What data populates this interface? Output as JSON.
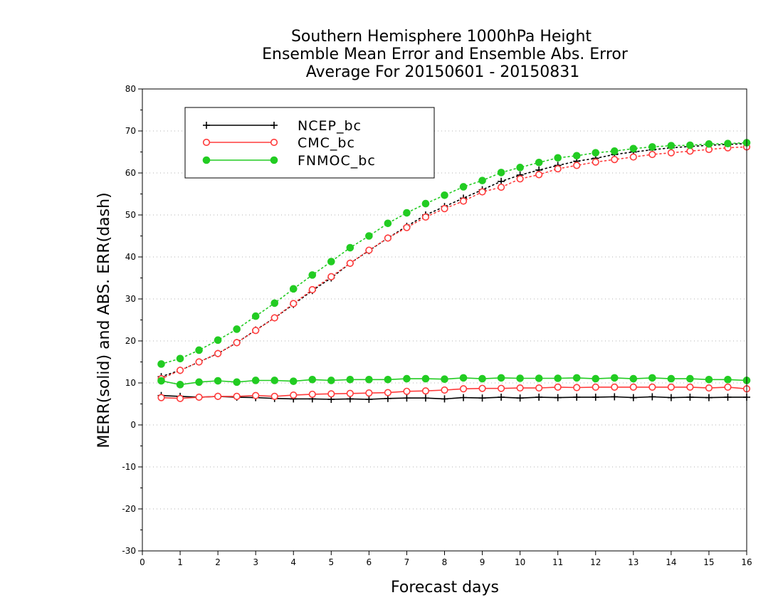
{
  "chart_data": {
    "type": "line",
    "title_lines": [
      "Southern Hemisphere 1000hPa Height",
      "Ensemble Mean Error and Ensemble Abs. Error",
      "Average For 20150601 - 20150831"
    ],
    "xlabel": "Forecast days",
    "ylabel": "MERR(solid) and ABS. ERR(dash)",
    "xlim": [
      0,
      16
    ],
    "ylim": [
      -30,
      80
    ],
    "xticks": [
      "0",
      "1",
      "2",
      "3",
      "4",
      "5",
      "6",
      "7",
      "8",
      "9",
      "10",
      "11",
      "12",
      "13",
      "14",
      "15",
      "16"
    ],
    "yticks": [
      "-30",
      "-20",
      "-10",
      "0",
      "10",
      "20",
      "30",
      "40",
      "50",
      "60",
      "70",
      "80"
    ],
    "grid": "horizontal dotted",
    "legend_position": "top-left",
    "x": [
      0.5,
      1,
      1.5,
      2,
      2.5,
      3,
      3.5,
      4,
      4.5,
      5,
      5.5,
      6,
      6.5,
      7,
      7.5,
      8,
      8.5,
      9,
      9.5,
      10,
      10.5,
      11,
      11.5,
      12,
      12.5,
      13,
      13.5,
      14,
      14.5,
      15,
      15.5,
      16
    ],
    "series": [
      {
        "name": "NCEP_bc",
        "color": "#000000",
        "marker": "plus",
        "merr": [
          7.0,
          6.8,
          6.6,
          6.8,
          6.6,
          6.5,
          6.3,
          6.2,
          6.2,
          6.1,
          6.2,
          6.1,
          6.3,
          6.4,
          6.4,
          6.2,
          6.5,
          6.4,
          6.6,
          6.4,
          6.6,
          6.5,
          6.6,
          6.6,
          6.7,
          6.5,
          6.7,
          6.5,
          6.6,
          6.5,
          6.6,
          6.6
        ],
        "abs_err": [
          11.5,
          13.0,
          15.0,
          17.0,
          19.6,
          22.6,
          25.5,
          28.7,
          32.0,
          35.0,
          38.5,
          41.5,
          44.5,
          47.3,
          50.0,
          52.0,
          54.0,
          56.0,
          58.0,
          59.5,
          60.7,
          61.8,
          62.8,
          63.5,
          64.4,
          65.0,
          65.5,
          66.0,
          66.3,
          66.6,
          66.8,
          67.0
        ]
      },
      {
        "name": "CMC_bc",
        "color": "#ff3b3b",
        "marker": "open-circle",
        "merr": [
          6.5,
          6.3,
          6.6,
          6.8,
          6.8,
          7.0,
          6.8,
          7.1,
          7.3,
          7.4,
          7.5,
          7.6,
          7.7,
          8.0,
          8.1,
          8.3,
          8.6,
          8.7,
          8.7,
          8.8,
          8.8,
          9.0,
          8.9,
          9.0,
          9.0,
          9.0,
          9.0,
          9.0,
          9.0,
          8.8,
          9.0,
          8.6
        ],
        "abs_err": [
          11.0,
          13.0,
          15.0,
          17.0,
          19.6,
          22.5,
          25.5,
          28.9,
          32.2,
          35.3,
          38.5,
          41.6,
          44.5,
          47.0,
          49.5,
          51.5,
          53.3,
          55.5,
          56.6,
          58.6,
          59.6,
          61.0,
          61.8,
          62.6,
          63.2,
          63.8,
          64.4,
          64.8,
          65.2,
          65.6,
          66.0,
          66.2
        ]
      },
      {
        "name": "FNMOC_bc",
        "color": "#22cc22",
        "marker": "filled-circle",
        "merr": [
          10.5,
          9.6,
          10.2,
          10.5,
          10.2,
          10.6,
          10.6,
          10.4,
          10.8,
          10.6,
          10.8,
          10.8,
          10.8,
          11.0,
          11.0,
          10.9,
          11.2,
          11.0,
          11.2,
          11.1,
          11.1,
          11.1,
          11.2,
          11.0,
          11.2,
          11.0,
          11.2,
          11.0,
          11.0,
          10.8,
          10.8,
          10.6
        ],
        "abs_err": [
          14.5,
          15.8,
          17.8,
          20.2,
          22.8,
          25.9,
          29.0,
          32.4,
          35.7,
          38.9,
          42.2,
          45.0,
          48.0,
          50.5,
          52.7,
          54.7,
          56.7,
          58.2,
          60.1,
          61.3,
          62.5,
          63.6,
          64.1,
          64.8,
          65.2,
          65.8,
          66.2,
          66.5,
          66.6,
          66.9,
          67.0,
          67.2
        ]
      }
    ]
  }
}
